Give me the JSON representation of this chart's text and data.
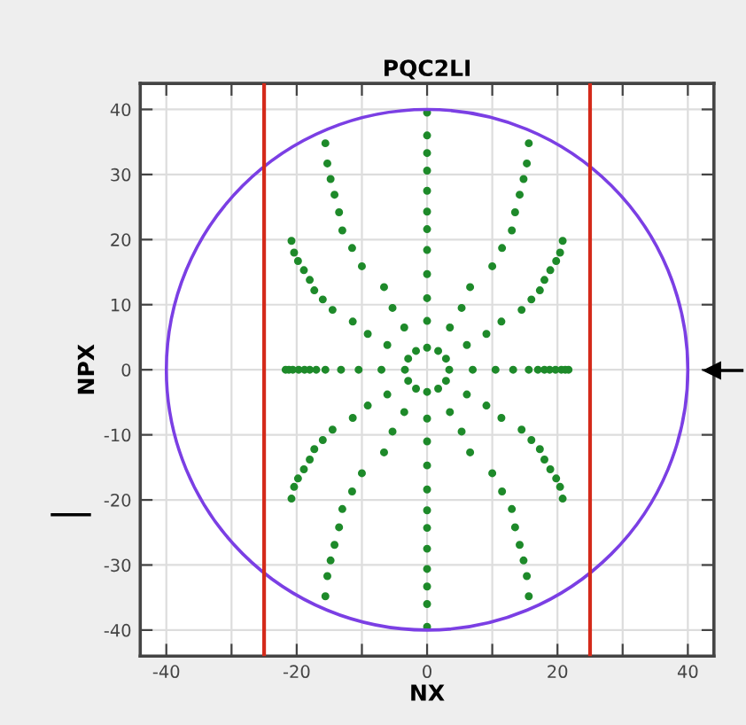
{
  "chart_data": {
    "type": "scatter",
    "title": "PQC2LI",
    "xlabel": "NX",
    "ylabel": "NPX",
    "xlim": [
      -44,
      44
    ],
    "ylim": [
      -44,
      44
    ],
    "xticks": [
      -40,
      {
        "value": -30,
        "label": null
      },
      -20,
      {
        "value": -10,
        "label": null
      },
      0,
      {
        "value": 10,
        "label": null
      },
      20,
      {
        "value": 30,
        "label": null
      },
      40
    ],
    "yticks": [
      -40,
      -30,
      -20,
      -10,
      0,
      10,
      20,
      30,
      40
    ],
    "grid": true,
    "marker": "circle",
    "series": [
      {
        "color": "#1e8a2a",
        "x": [
          3.4,
          2.9,
          1.7,
          0,
          -1.7,
          -2.9,
          -3.4,
          -2.9,
          -1.7,
          0,
          1.7,
          2.9
        ],
        "values": [
          0,
          1.7,
          2.9,
          3.4,
          2.9,
          1.7,
          0,
          -1.7,
          -2.9,
          -3.4,
          -2.9,
          -1.7
        ]
      },
      {
        "color": "#1e8a2a",
        "x": [
          7,
          6.1,
          3.5,
          0,
          -3.5,
          -6.1,
          -7,
          -6.1,
          -3.5,
          0,
          3.5,
          6.1
        ],
        "values": [
          0,
          3.8,
          6.5,
          7.5,
          6.5,
          3.8,
          0,
          -3.8,
          -6.5,
          -7.5,
          -6.5,
          -3.8
        ]
      },
      {
        "color": "#1e8a2a",
        "x": [
          10.5,
          9.1,
          5.3,
          0,
          -5.3,
          -9.1,
          -10.5,
          -9.1,
          -5.3,
          0,
          5.3,
          9.1
        ],
        "values": [
          0,
          5.5,
          9.5,
          11,
          9.5,
          5.5,
          0,
          -5.5,
          -9.5,
          -11,
          -9.5,
          -5.5
        ]
      },
      {
        "color": "#1e8a2a",
        "x": [
          13.2,
          11.4,
          6.6,
          0,
          -6.6,
          -11.4,
          -13.2,
          -11.4,
          -6.6,
          0,
          6.6,
          11.4
        ],
        "values": [
          0,
          7.4,
          12.7,
          14.7,
          12.7,
          7.4,
          0,
          -7.4,
          -12.7,
          -14.7,
          -12.7,
          -7.4
        ]
      },
      {
        "color": "#1e8a2a",
        "x": [
          15.6,
          14.5,
          10,
          0,
          -10,
          -14.5,
          -15.6,
          -14.5,
          -10,
          0,
          10,
          14.5
        ],
        "values": [
          0,
          9.2,
          15.9,
          18.4,
          15.9,
          9.2,
          0,
          -9.2,
          -15.9,
          -18.4,
          -15.9,
          -9.2
        ]
      },
      {
        "color": "#1e8a2a",
        "x": [
          17,
          16,
          11.5,
          0,
          -11.5,
          -16,
          -17,
          -16,
          -11.5,
          0,
          11.5,
          16
        ],
        "values": [
          0,
          10.8,
          18.7,
          21.6,
          18.7,
          10.8,
          0,
          -10.8,
          -18.7,
          -21.6,
          -18.7,
          -10.8
        ]
      },
      {
        "color": "#1e8a2a",
        "x": [
          18,
          17.3,
          13,
          0,
          -13,
          -17.3,
          -18,
          -17.3,
          -13,
          0,
          13,
          17.3
        ],
        "values": [
          0,
          12.2,
          21.4,
          24.3,
          21.4,
          12.2,
          0,
          -12.2,
          -21.4,
          -24.3,
          -21.4,
          -12.2
        ]
      },
      {
        "color": "#1e8a2a",
        "x": [
          18.8,
          18,
          13.5,
          0,
          -13.5,
          -18,
          -18.8,
          -18,
          -13.5,
          0,
          13.5,
          18
        ],
        "values": [
          0,
          13.8,
          24.2,
          27.5,
          24.2,
          13.8,
          0,
          -13.8,
          -24.2,
          -27.5,
          -24.2,
          -13.8
        ]
      },
      {
        "color": "#1e8a2a",
        "x": [
          19.7,
          18.9,
          14.2,
          0,
          -14.2,
          -18.9,
          -19.7,
          -18.9,
          -14.2,
          0,
          14.2,
          18.9
        ],
        "values": [
          0,
          15.3,
          26.9,
          30.6,
          26.9,
          15.3,
          0,
          -15.3,
          -26.9,
          -30.6,
          -26.9,
          -15.3
        ]
      },
      {
        "color": "#1e8a2a",
        "x": [
          20.6,
          19.8,
          14.8,
          0,
          -14.8,
          -19.8,
          -20.6,
          -19.8,
          -14.8,
          0,
          14.8,
          19.8
        ],
        "values": [
          0,
          16.7,
          29.3,
          33.3,
          29.3,
          16.7,
          0,
          -16.7,
          -29.3,
          -33.3,
          -29.3,
          -16.7
        ]
      },
      {
        "color": "#1e8a2a",
        "x": [
          21.2,
          20.4,
          15.3,
          0,
          -15.3,
          -20.4,
          -21.2,
          -20.4,
          -15.3,
          0,
          15.3,
          20.4
        ],
        "values": [
          0,
          18,
          31.7,
          36,
          31.7,
          18,
          0,
          -18,
          -31.7,
          -36,
          -31.7,
          -18
        ]
      },
      {
        "color": "#1e8a2a",
        "x": [
          21.7,
          20.8,
          15.6,
          0,
          -15.6,
          -20.8,
          -21.7,
          -20.8,
          -15.6,
          0,
          15.6,
          20.8
        ],
        "values": [
          0,
          19.8,
          34.8,
          39.5,
          34.8,
          19.8,
          0,
          -19.8,
          -34.8,
          -39.5,
          -34.8,
          -19.8
        ]
      }
    ],
    "ref_lines": [
      {
        "axis": "x",
        "value": -25,
        "color": "#d42a1a"
      },
      {
        "axis": "x",
        "value": 25,
        "color": "#d42a1a"
      }
    ]
  }
}
